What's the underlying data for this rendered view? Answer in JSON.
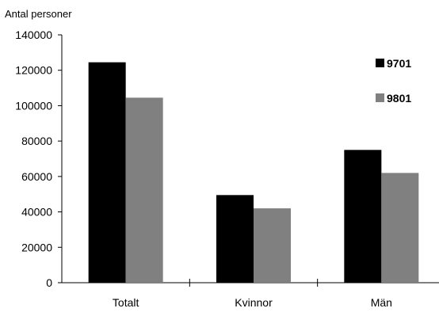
{
  "chart_data": {
    "type": "bar",
    "title": "",
    "ylabel": "Antal personer",
    "xlabel": "",
    "categories": [
      "Totalt",
      "Kvinnor",
      "Män"
    ],
    "series": [
      {
        "name": "9701",
        "color": "#000000",
        "values": [
          124500,
          49500,
          75000
        ]
      },
      {
        "name": "9801",
        "color": "#808080",
        "values": [
          104500,
          42000,
          62000
        ]
      }
    ],
    "ylim": [
      0,
      140000
    ],
    "yticks": [
      0,
      20000,
      40000,
      60000,
      80000,
      100000,
      120000,
      140000
    ],
    "grid": false,
    "legend_position": "top-right"
  }
}
